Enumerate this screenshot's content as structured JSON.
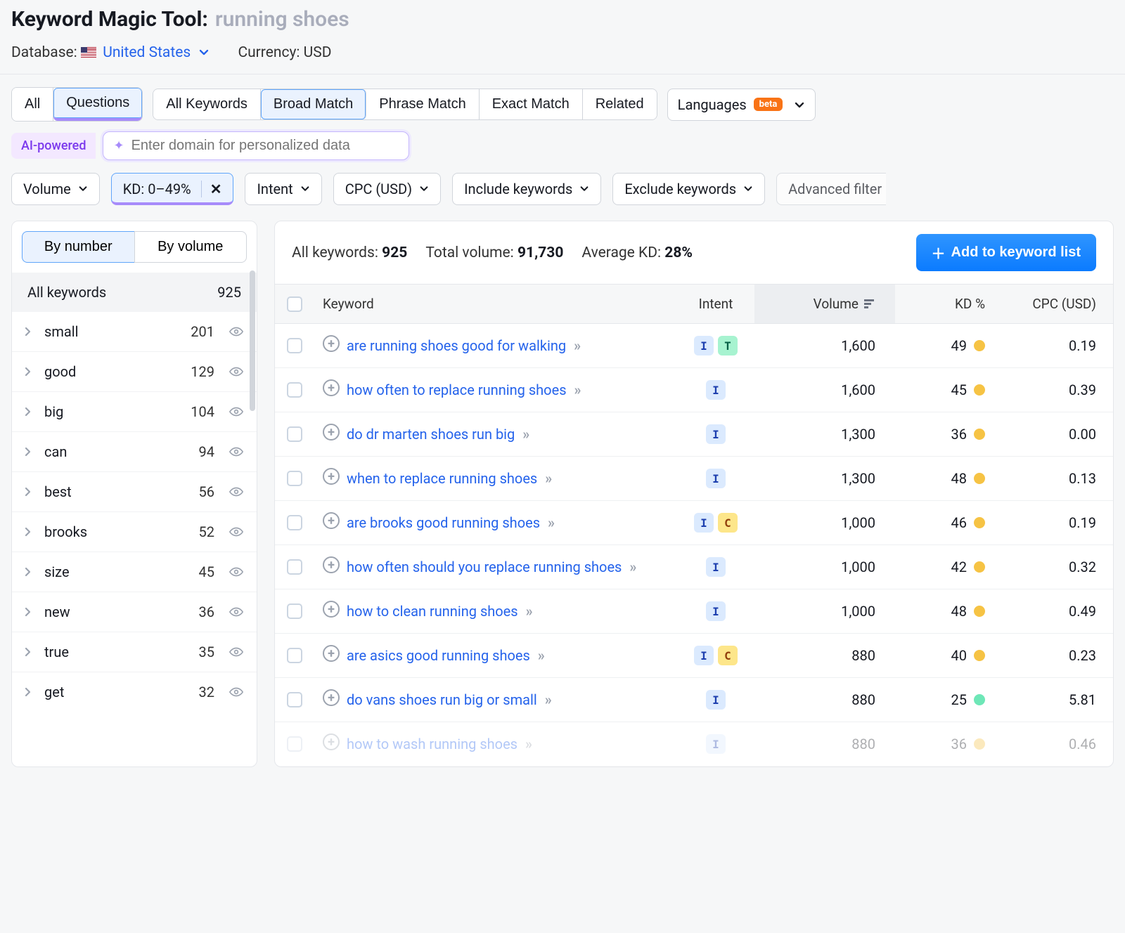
{
  "header": {
    "title_main": "Keyword Magic Tool:",
    "title_query": "running shoes",
    "database_label": "Database:",
    "database_value": "United States",
    "currency_label": "Currency: USD"
  },
  "toolbar": {
    "group1": {
      "all": "All",
      "questions": "Questions"
    },
    "group2": {
      "all_keywords": "All Keywords",
      "broad_match": "Broad Match",
      "phrase_match": "Phrase Match",
      "exact_match": "Exact Match",
      "related": "Related"
    },
    "languages_label": "Languages",
    "beta_label": "beta"
  },
  "ai": {
    "badge": "AI-powered",
    "placeholder": "Enter domain for personalized data"
  },
  "filters": {
    "volume": "Volume",
    "kd": "KD: 0–49%",
    "intent": "Intent",
    "cpc": "CPC (USD)",
    "include": "Include keywords",
    "exclude": "Exclude keywords",
    "advanced": "Advanced filter"
  },
  "sidebar": {
    "by_number": "By number",
    "by_volume": "By volume",
    "all_keywords_label": "All keywords",
    "all_keywords_count": "925",
    "items": [
      {
        "term": "small",
        "count": "201"
      },
      {
        "term": "good",
        "count": "129"
      },
      {
        "term": "big",
        "count": "104"
      },
      {
        "term": "can",
        "count": "94"
      },
      {
        "term": "best",
        "count": "56"
      },
      {
        "term": "brooks",
        "count": "52"
      },
      {
        "term": "size",
        "count": "45"
      },
      {
        "term": "new",
        "count": "36"
      },
      {
        "term": "true",
        "count": "35"
      },
      {
        "term": "get",
        "count": "32"
      }
    ]
  },
  "stats": {
    "all_kw_label": "All keywords:",
    "all_kw_value": "925",
    "total_vol_label": "Total volume:",
    "total_vol_value": "91,730",
    "avg_kd_label": "Average KD:",
    "avg_kd_value": "28%",
    "add_button": "Add to keyword list"
  },
  "table": {
    "headers": {
      "keyword": "Keyword",
      "intent": "Intent",
      "volume": "Volume",
      "kd": "KD %",
      "cpc": "CPC (USD)"
    },
    "rows": [
      {
        "kw": "are running shoes good for walking",
        "intents": [
          "I",
          "T"
        ],
        "volume": "1,600",
        "kd": "49",
        "kd_color": "#f6c344",
        "cpc": "0.19"
      },
      {
        "kw": "how often to replace running shoes",
        "intents": [
          "I"
        ],
        "volume": "1,600",
        "kd": "45",
        "kd_color": "#f6c344",
        "cpc": "0.39"
      },
      {
        "kw": "do dr marten shoes run big",
        "intents": [
          "I"
        ],
        "volume": "1,300",
        "kd": "36",
        "kd_color": "#f6c344",
        "cpc": "0.00"
      },
      {
        "kw": "when to replace running shoes",
        "intents": [
          "I"
        ],
        "volume": "1,300",
        "kd": "48",
        "kd_color": "#f6c344",
        "cpc": "0.13"
      },
      {
        "kw": "are brooks good running shoes",
        "intents": [
          "I",
          "C"
        ],
        "volume": "1,000",
        "kd": "46",
        "kd_color": "#f6c344",
        "cpc": "0.19"
      },
      {
        "kw": "how often should you replace running shoes",
        "intents": [
          "I"
        ],
        "volume": "1,000",
        "kd": "42",
        "kd_color": "#f6c344",
        "cpc": "0.32"
      },
      {
        "kw": "how to clean running shoes",
        "intents": [
          "I"
        ],
        "volume": "1,000",
        "kd": "48",
        "kd_color": "#f6c344",
        "cpc": "0.49"
      },
      {
        "kw": "are asics good running shoes",
        "intents": [
          "I",
          "C"
        ],
        "volume": "880",
        "kd": "40",
        "kd_color": "#f6c344",
        "cpc": "0.23"
      },
      {
        "kw": "do vans shoes run big or small",
        "intents": [
          "I"
        ],
        "volume": "880",
        "kd": "25",
        "kd_color": "#6ee7b7",
        "cpc": "5.81"
      },
      {
        "kw": "how to wash running shoes",
        "intents": [
          "I"
        ],
        "volume": "880",
        "kd": "36",
        "kd_color": "#f6c344",
        "cpc": "0.46"
      }
    ]
  },
  "colors": {
    "link": "#2563eb",
    "accent_purple": "#a78bfa",
    "bg": "#f6f7f8"
  }
}
